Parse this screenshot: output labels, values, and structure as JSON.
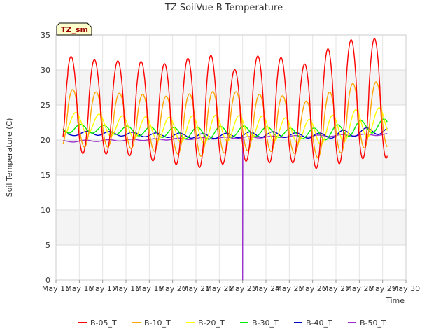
{
  "chart_data": {
    "type": "line",
    "title": "TZ SoilVue B Temperature",
    "xlabel": "Time",
    "ylabel": "Soil Temperature (C)",
    "tag": "TZ_sm",
    "ylim": [
      0,
      35
    ],
    "yticks": [
      0,
      5,
      10,
      15,
      20,
      25,
      30,
      35
    ],
    "xlim": [
      15,
      30
    ],
    "xticks": [
      15,
      16,
      17,
      18,
      19,
      20,
      21,
      22,
      23,
      24,
      25,
      26,
      27,
      28,
      29,
      30
    ],
    "xtick_labels": [
      "May 15",
      "May 16",
      "May 17",
      "May 18",
      "May 19",
      "May 20",
      "May 21",
      "May 22",
      "May 23",
      "May 24",
      "May 25",
      "May 26",
      "May 27",
      "May 28",
      "May 29",
      "May 30"
    ],
    "x_start": 15.3,
    "x_end": 29.2,
    "grid": true,
    "legend_position": "bottom",
    "colors": {
      "B-05_T": "#ff0000",
      "B-10_T": "#ffa500",
      "B-20_T": "#ffff00",
      "B-30_T": "#00ee00",
      "B-40_T": "#0000cc",
      "B-50_T": "#9a32cd"
    },
    "series": [
      {
        "name": "B-05_T",
        "daily_max": [
          32.0,
          31.5,
          31.3,
          31.3,
          30.8,
          31.5,
          32.5,
          29.7,
          32.0,
          32.0,
          30.5,
          32.8,
          34.3,
          34.5
        ],
        "daily_min": [
          18.2,
          18.0,
          18.0,
          17.6,
          16.7,
          16.4,
          15.9,
          16.9,
          17.0,
          16.6,
          16.8,
          15.5,
          17.2,
          17.4
        ]
      },
      {
        "name": "B-10_T",
        "daily_max": [
          27.3,
          26.9,
          26.7,
          26.6,
          26.2,
          26.5,
          26.9,
          27.0,
          26.5,
          26.6,
          25.3,
          26.5,
          28.0,
          28.3
        ],
        "daily_min": [
          19.0,
          19.0,
          19.0,
          18.7,
          18.3,
          17.9,
          17.6,
          18.4,
          18.5,
          18.3,
          18.0,
          17.3,
          18.5,
          19.0
        ]
      },
      {
        "name": "B-20_T",
        "daily_max": [
          24.0,
          23.8,
          23.5,
          23.4,
          23.2,
          23.4,
          23.6,
          23.5,
          23.5,
          23.4,
          22.8,
          23.2,
          24.2,
          24.6
        ],
        "daily_min": [
          21.0,
          20.8,
          20.5,
          20.2,
          19.9,
          19.6,
          19.5,
          19.9,
          20.0,
          19.8,
          19.6,
          19.3,
          19.8,
          20.5
        ]
      },
      {
        "name": "B-30_T",
        "daily_max": [
          22.3,
          22.2,
          22.0,
          22.0,
          21.8,
          21.8,
          21.9,
          22.0,
          22.0,
          21.8,
          21.6,
          21.8,
          22.5,
          23.0
        ],
        "daily_min": [
          21.0,
          21.0,
          20.8,
          20.6,
          20.4,
          20.2,
          20.1,
          20.4,
          20.5,
          20.4,
          20.2,
          20.0,
          20.5,
          21.0
        ]
      },
      {
        "name": "B-40_T",
        "daily_max": [
          21.0,
          21.3,
          21.2,
          21.1,
          21.0,
          21.0,
          20.9,
          21.0,
          21.2,
          21.2,
          21.0,
          21.0,
          21.5,
          21.8
        ],
        "daily_min": [
          20.6,
          20.7,
          20.6,
          20.5,
          20.4,
          20.3,
          20.2,
          20.3,
          20.4,
          20.4,
          20.3,
          20.2,
          20.4,
          20.8
        ]
      },
      {
        "name": "B-50_T",
        "start": 19.8,
        "end": 20.8,
        "dropout": {
          "x": 23.0,
          "y": 0
        }
      }
    ]
  }
}
